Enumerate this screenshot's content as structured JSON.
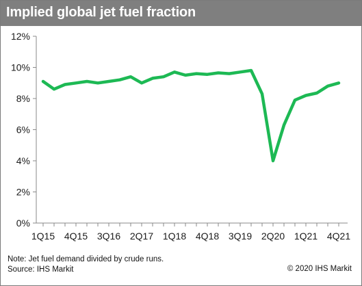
{
  "chart_data": {
    "type": "line",
    "title": "Implied global jet fuel fraction",
    "xlabel": "",
    "ylabel": "",
    "ylim": [
      0,
      12
    ],
    "yticks": [
      "0%",
      "2%",
      "4%",
      "6%",
      "8%",
      "10%",
      "12%"
    ],
    "xtick_labels": [
      "1Q15",
      "4Q15",
      "3Q16",
      "2Q17",
      "1Q18",
      "4Q18",
      "3Q19",
      "2Q20",
      "1Q21",
      "4Q21"
    ],
    "categories": [
      "1Q15",
      "2Q15",
      "3Q15",
      "4Q15",
      "1Q16",
      "2Q16",
      "3Q16",
      "4Q16",
      "1Q17",
      "2Q17",
      "3Q17",
      "4Q17",
      "1Q18",
      "2Q18",
      "3Q18",
      "4Q18",
      "1Q19",
      "2Q19",
      "3Q19",
      "4Q19",
      "1Q20",
      "2Q20",
      "3Q20",
      "4Q20",
      "1Q21",
      "2Q21",
      "3Q21",
      "4Q21"
    ],
    "series": [
      {
        "color": "#1db954",
        "values": [
          9.1,
          8.6,
          8.9,
          9.0,
          9.1,
          9.0,
          9.1,
          9.2,
          9.4,
          9.0,
          9.3,
          9.4,
          9.7,
          9.5,
          9.6,
          9.55,
          9.65,
          9.6,
          9.7,
          9.8,
          8.3,
          4.0,
          6.3,
          7.9,
          8.2,
          8.35,
          8.8,
          9.0
        ]
      }
    ],
    "grid": false,
    "legend": "none"
  },
  "footer": {
    "note": "Note: Jet fuel demand divided by crude runs.",
    "source": "Source: IHS Markit",
    "copyright": "© 2020 IHS Markit"
  }
}
